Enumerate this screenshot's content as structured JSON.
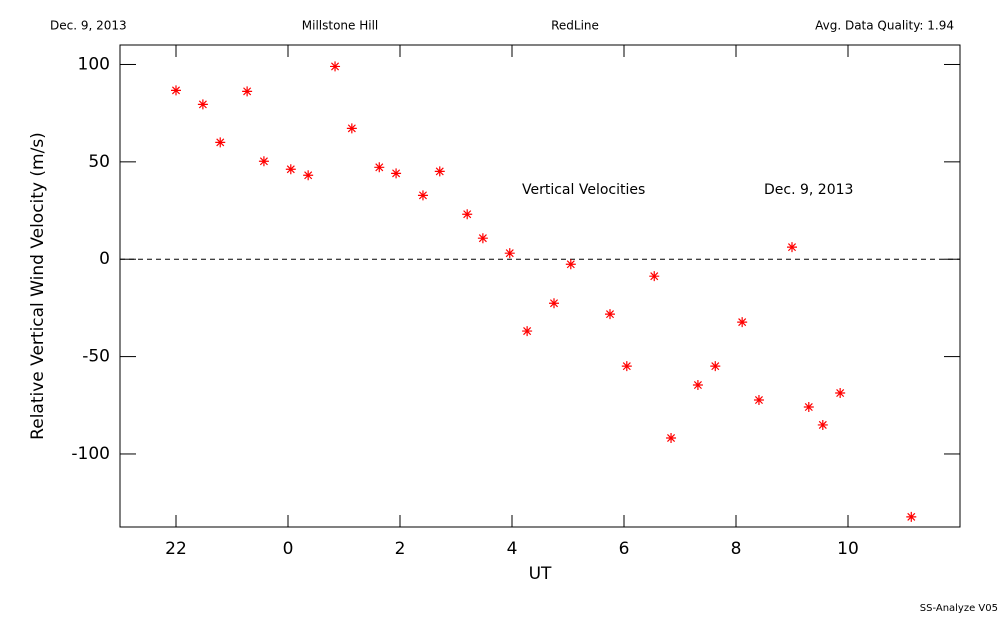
{
  "chart_data": {
    "type": "scatter",
    "header": {
      "date": "Dec. 9, 2013",
      "site": "Millstone Hill",
      "instrument": "RedLine",
      "quality": "Avg. Data Quality: 1.94"
    },
    "annotations": [
      "Vertical Velocities",
      "Dec. 9, 2013"
    ],
    "footer": "SS-Analyze V05",
    "x_label": "UT",
    "y_label": "Relative Vertical Wind Velocity (m/s)",
    "xlim": [
      -3,
      12
    ],
    "ylim": [
      -137.5,
      110
    ],
    "xticks": [
      {
        "value": -2,
        "label": "22"
      },
      0,
      2,
      4,
      6,
      8,
      10
    ],
    "yticks": [
      -100,
      -50,
      0,
      50,
      100
    ],
    "reference_line": 0,
    "marker": "asterisk",
    "color": "#ff0000",
    "x": [
      -2,
      -1.52,
      -1.21,
      -0.73,
      -0.43,
      0.05,
      0.36,
      0.84,
      1.14,
      1.63,
      1.93,
      2.41,
      2.71,
      3.2,
      3.48,
      3.96,
      4.27,
      4.75,
      5.05,
      5.75,
      6.05,
      6.54,
      6.84,
      7.32,
      7.63,
      8.11,
      8.41,
      9.0,
      9.3,
      9.55,
      9.86,
      11.13
    ],
    "values": [
      86.7,
      79.5,
      60,
      86.2,
      50.3,
      46.2,
      43.1,
      99,
      67.2,
      47.2,
      44.1,
      32.8,
      45.1,
      23.1,
      10.8,
      3.1,
      -36.9,
      -22.6,
      -2.6,
      -28.2,
      -54.9,
      -8.7,
      -91.8,
      -64.6,
      -54.9,
      -32.3,
      -72.3,
      6.2,
      -75.9,
      -85.1,
      -68.7,
      -132.3
    ]
  }
}
